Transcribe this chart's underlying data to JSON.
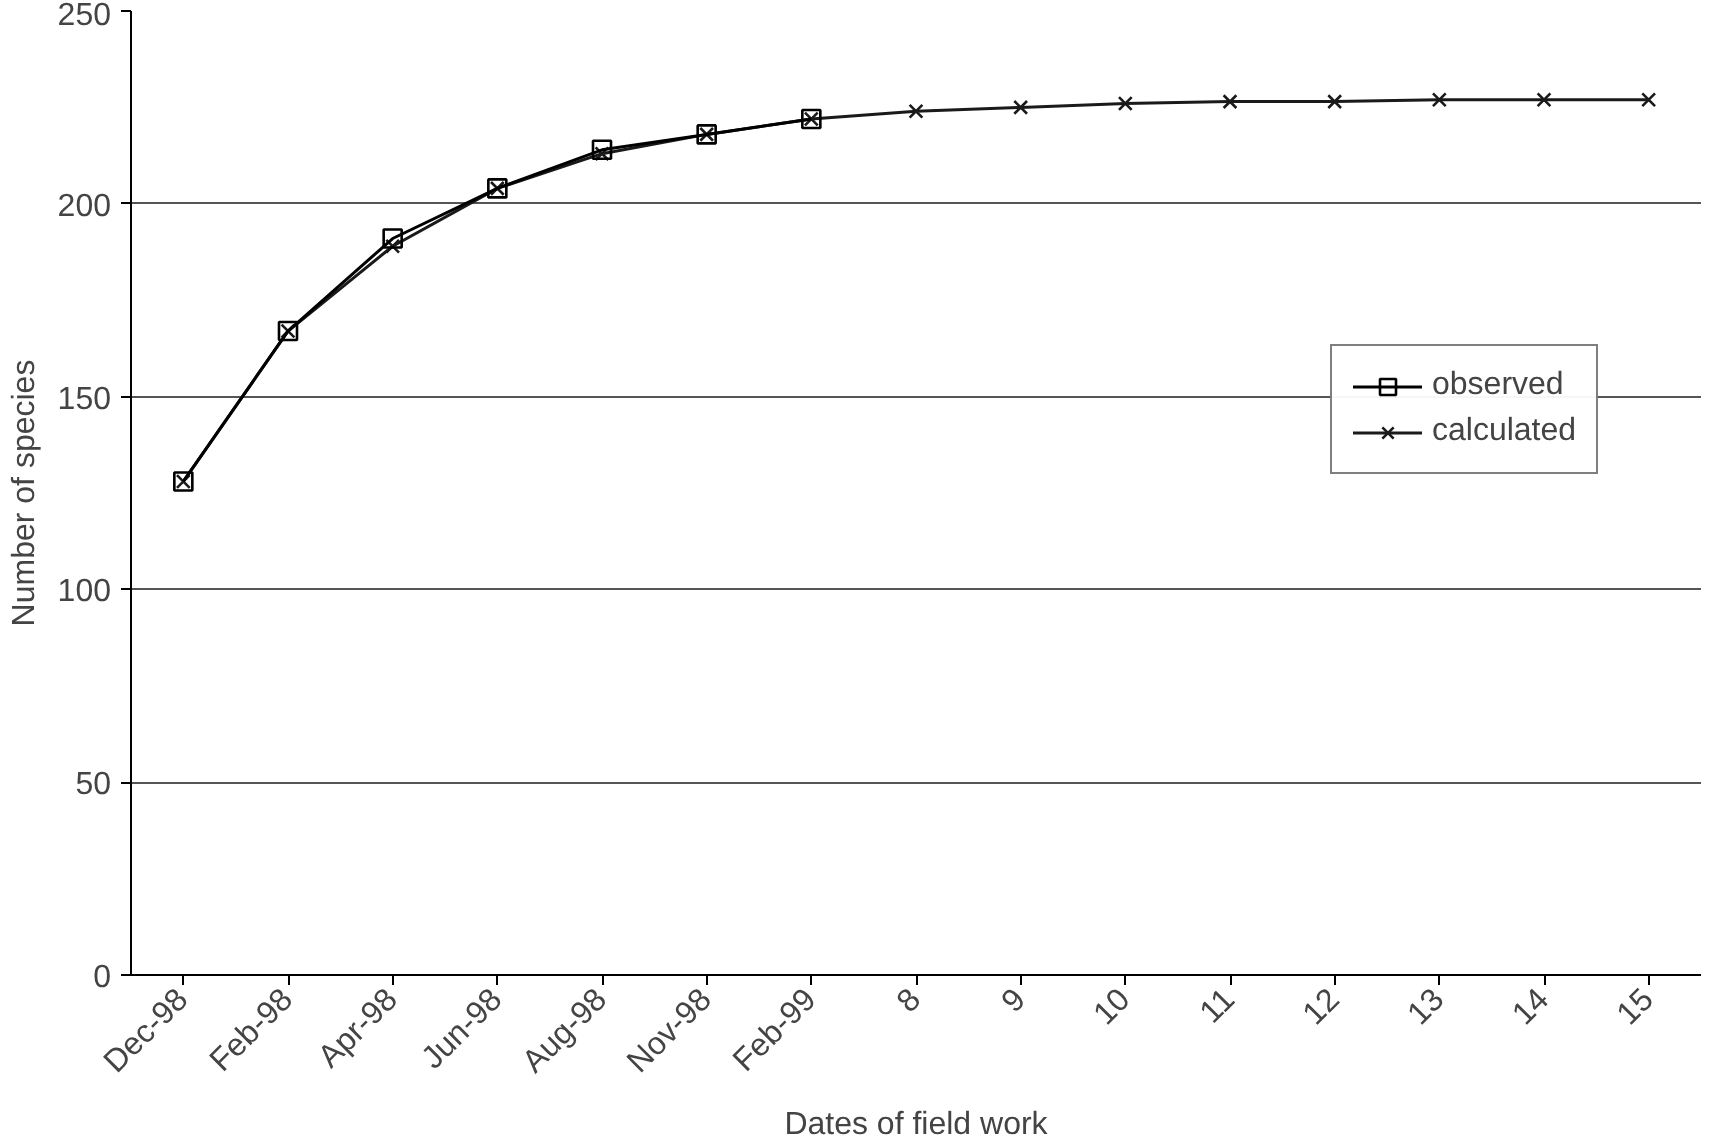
{
  "chart_data": {
    "type": "line",
    "xlabel": "Dates of field work",
    "ylabel": "Number of species",
    "categories": [
      "Dec-98",
      "Feb-98",
      "Apr-98",
      "Jun-98",
      "Aug-98",
      "Nov-98",
      "Feb-99",
      "8",
      "9",
      "10",
      "11",
      "12",
      "13",
      "14",
      "15"
    ],
    "series": [
      {
        "name": "observed",
        "color": "#000000",
        "marker": "square",
        "values": [
          128,
          167,
          191,
          204,
          214,
          218,
          222,
          null,
          null,
          null,
          null,
          null,
          null,
          null,
          null
        ]
      },
      {
        "name": "calculated",
        "color": "#1a1a1a",
        "marker": "cross",
        "values": [
          128,
          167,
          189,
          204,
          213,
          218,
          222,
          224,
          225,
          226,
          226.5,
          226.5,
          227,
          227,
          227
        ]
      }
    ],
    "ylim": [
      0,
      250
    ],
    "yticks": [
      0,
      50,
      100,
      150,
      200,
      250
    ],
    "grid": "y",
    "legend": "right",
    "line_style": "solid"
  }
}
